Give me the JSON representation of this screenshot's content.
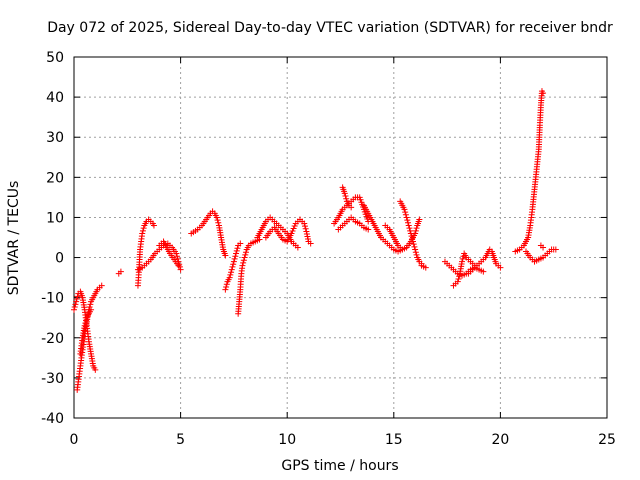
{
  "chart_data": {
    "type": "scatter",
    "title": "Day 072 of 2025, Sidereal Day-to-day VTEC variation (SDTVAR) for receiver bndr",
    "xlabel": "GPS time / hours",
    "ylabel": "SDTVAR / TECUs",
    "xlim": [
      0,
      25
    ],
    "ylim": [
      -40,
      50
    ],
    "xticks": [
      "0",
      "5",
      "10",
      "15",
      "20",
      "25"
    ],
    "yticks": [
      "-40",
      "-30",
      "-20",
      "-10",
      "0",
      "10",
      "20",
      "30",
      "40",
      "50"
    ],
    "grid": true,
    "marker": "plus",
    "color": "#ff0000",
    "tracks": [
      [
        [
          0.0,
          -13
        ],
        [
          0.1,
          -11
        ],
        [
          0.2,
          -9
        ],
        [
          0.3,
          -8.5
        ],
        [
          0.4,
          -10
        ],
        [
          0.5,
          -13
        ],
        [
          0.6,
          -17
        ],
        [
          0.7,
          -21
        ],
        [
          0.8,
          -24
        ],
        [
          0.9,
          -27
        ],
        [
          1.0,
          -28
        ]
      ],
      [
        [
          0.15,
          -33
        ],
        [
          0.2,
          -31
        ],
        [
          0.3,
          -27
        ],
        [
          0.4,
          -23
        ],
        [
          0.5,
          -19
        ],
        [
          0.6,
          -16
        ],
        [
          0.7,
          -13
        ],
        [
          0.8,
          -11
        ],
        [
          0.9,
          -10
        ],
        [
          1.0,
          -9
        ],
        [
          1.1,
          -8
        ],
        [
          1.2,
          -7.5
        ],
        [
          1.3,
          -7
        ]
      ],
      [
        [
          0.3,
          -24
        ],
        [
          0.4,
          -20
        ],
        [
          0.5,
          -17
        ],
        [
          0.6,
          -15
        ],
        [
          0.7,
          -14
        ],
        [
          0.8,
          -13
        ]
      ],
      [
        [
          2.1,
          -4
        ],
        [
          2.2,
          -3.5
        ]
      ],
      [
        [
          3.0,
          -7
        ],
        [
          3.05,
          -3
        ],
        [
          3.1,
          2
        ],
        [
          3.2,
          6
        ],
        [
          3.3,
          8
        ],
        [
          3.4,
          9
        ],
        [
          3.5,
          9.5
        ],
        [
          3.6,
          9
        ],
        [
          3.7,
          8.5
        ],
        [
          3.75,
          8
        ]
      ],
      [
        [
          3.0,
          -3
        ],
        [
          3.2,
          -2.5
        ],
        [
          3.4,
          -1.5
        ],
        [
          3.6,
          -0.5
        ],
        [
          3.8,
          1
        ],
        [
          4.0,
          2
        ],
        [
          4.2,
          3
        ],
        [
          4.4,
          3.5
        ],
        [
          4.6,
          2.5
        ],
        [
          4.8,
          1
        ],
        [
          4.9,
          -1
        ],
        [
          5.0,
          -3
        ]
      ],
      [
        [
          4.0,
          3
        ],
        [
          4.2,
          4
        ],
        [
          4.3,
          3
        ],
        [
          4.5,
          1
        ],
        [
          4.7,
          -0.5
        ],
        [
          4.9,
          -2
        ]
      ],
      [
        [
          5.5,
          6
        ],
        [
          5.8,
          7
        ],
        [
          6.0,
          8
        ],
        [
          6.2,
          9.5
        ],
        [
          6.4,
          11
        ],
        [
          6.5,
          11.5
        ],
        [
          6.6,
          11
        ],
        [
          6.7,
          10
        ],
        [
          6.8,
          8
        ],
        [
          6.9,
          5
        ],
        [
          7.0,
          2
        ],
        [
          7.1,
          0.5
        ]
      ],
      [
        [
          7.1,
          -8
        ],
        [
          7.2,
          -6
        ],
        [
          7.3,
          -5
        ],
        [
          7.4,
          -3
        ],
        [
          7.5,
          -1
        ],
        [
          7.6,
          1
        ],
        [
          7.7,
          3
        ],
        [
          7.8,
          3.5
        ]
      ],
      [
        [
          7.7,
          -14
        ],
        [
          7.75,
          -11
        ],
        [
          7.8,
          -8
        ],
        [
          7.85,
          -4
        ],
        [
          7.9,
          -2
        ],
        [
          8.0,
          0
        ],
        [
          8.1,
          2
        ],
        [
          8.2,
          3
        ],
        [
          8.3,
          3.5
        ],
        [
          8.5,
          4
        ],
        [
          8.7,
          4.5
        ]
      ],
      [
        [
          8.6,
          5
        ],
        [
          8.8,
          7
        ],
        [
          9.0,
          9
        ],
        [
          9.2,
          10
        ],
        [
          9.4,
          9
        ],
        [
          9.6,
          8
        ],
        [
          9.8,
          7
        ],
        [
          10.0,
          6
        ],
        [
          10.2,
          4
        ],
        [
          10.4,
          3
        ],
        [
          10.5,
          2.5
        ]
      ],
      [
        [
          9.0,
          5
        ],
        [
          9.2,
          6.5
        ],
        [
          9.4,
          7.5
        ],
        [
          9.6,
          6
        ],
        [
          9.8,
          4.5
        ],
        [
          10.0,
          4
        ],
        [
          10.2,
          6
        ],
        [
          10.4,
          8.5
        ],
        [
          10.6,
          9.5
        ],
        [
          10.8,
          8.5
        ],
        [
          10.9,
          6.5
        ],
        [
          11.0,
          4
        ],
        [
          11.1,
          3.5
        ]
      ],
      [
        [
          12.2,
          8.5
        ],
        [
          12.4,
          10
        ],
        [
          12.6,
          12
        ],
        [
          12.8,
          13
        ],
        [
          13.0,
          14
        ],
        [
          13.2,
          15
        ],
        [
          13.4,
          15
        ],
        [
          13.6,
          12
        ],
        [
          13.8,
          9
        ]
      ],
      [
        [
          12.4,
          7
        ],
        [
          12.6,
          8
        ],
        [
          12.8,
          9
        ],
        [
          13.0,
          10
        ],
        [
          13.2,
          9
        ],
        [
          13.4,
          8.5
        ],
        [
          13.6,
          7.5
        ],
        [
          13.8,
          7
        ]
      ],
      [
        [
          12.6,
          17.5
        ],
        [
          12.7,
          16
        ],
        [
          12.8,
          14
        ],
        [
          12.9,
          13
        ],
        [
          13.0,
          12.5
        ]
      ],
      [
        [
          13.6,
          13
        ],
        [
          13.8,
          11
        ],
        [
          14.0,
          9
        ],
        [
          14.2,
          7
        ],
        [
          14.4,
          5
        ],
        [
          14.6,
          4
        ],
        [
          14.8,
          3
        ],
        [
          15.0,
          2
        ],
        [
          15.2,
          1.5
        ],
        [
          15.4,
          2
        ]
      ],
      [
        [
          14.6,
          8
        ],
        [
          14.8,
          7
        ],
        [
          15.0,
          5
        ],
        [
          15.2,
          3
        ],
        [
          15.4,
          2
        ],
        [
          15.6,
          2.5
        ],
        [
          15.8,
          4
        ],
        [
          16.0,
          6
        ],
        [
          16.1,
          8
        ],
        [
          16.2,
          9.5
        ]
      ],
      [
        [
          15.3,
          14
        ],
        [
          15.4,
          13
        ],
        [
          15.5,
          12
        ],
        [
          15.6,
          10
        ],
        [
          15.7,
          8
        ],
        [
          15.8,
          6
        ],
        [
          15.9,
          4
        ],
        [
          16.0,
          2
        ],
        [
          16.1,
          0
        ],
        [
          16.2,
          -1
        ],
        [
          16.3,
          -1.5
        ]
      ],
      [
        [
          16.3,
          -2
        ],
        [
          16.5,
          -2.5
        ]
      ],
      [
        [
          17.4,
          -1
        ],
        [
          17.6,
          -2
        ],
        [
          17.8,
          -3
        ],
        [
          18.0,
          -4
        ],
        [
          18.2,
          -4.5
        ],
        [
          18.4,
          -4
        ],
        [
          18.6,
          -3
        ],
        [
          18.8,
          -2.5
        ],
        [
          19.0,
          -3
        ],
        [
          19.2,
          -3.5
        ]
      ],
      [
        [
          17.8,
          -7
        ],
        [
          18.0,
          -6
        ],
        [
          18.1,
          -4
        ],
        [
          18.2,
          -1
        ],
        [
          18.3,
          1
        ],
        [
          18.4,
          0
        ],
        [
          18.6,
          -1
        ],
        [
          18.8,
          -2
        ]
      ],
      [
        [
          18.5,
          -4
        ],
        [
          18.7,
          -3
        ],
        [
          18.9,
          -2
        ],
        [
          19.1,
          -1
        ],
        [
          19.3,
          0
        ],
        [
          19.5,
          2
        ],
        [
          19.6,
          1.5
        ],
        [
          19.7,
          0
        ],
        [
          19.8,
          -1.5
        ],
        [
          19.9,
          -2
        ],
        [
          20.0,
          -2.5
        ]
      ],
      [
        [
          20.7,
          1.5
        ],
        [
          20.9,
          2
        ],
        [
          21.1,
          3
        ],
        [
          21.3,
          5
        ],
        [
          21.4,
          8
        ],
        [
          21.5,
          12
        ],
        [
          21.6,
          17
        ],
        [
          21.7,
          22
        ],
        [
          21.8,
          27
        ],
        [
          21.85,
          33
        ],
        [
          21.9,
          38
        ],
        [
          21.95,
          41.5
        ],
        [
          22.0,
          41
        ]
      ],
      [
        [
          21.2,
          1.5
        ],
        [
          21.4,
          0
        ],
        [
          21.5,
          -0.5
        ],
        [
          21.6,
          -1
        ],
        [
          21.8,
          -0.5
        ],
        [
          22.0,
          0
        ],
        [
          22.2,
          1
        ],
        [
          22.4,
          2
        ],
        [
          22.6,
          2
        ]
      ],
      [
        [
          21.9,
          3
        ],
        [
          22.0,
          2.5
        ]
      ]
    ]
  }
}
